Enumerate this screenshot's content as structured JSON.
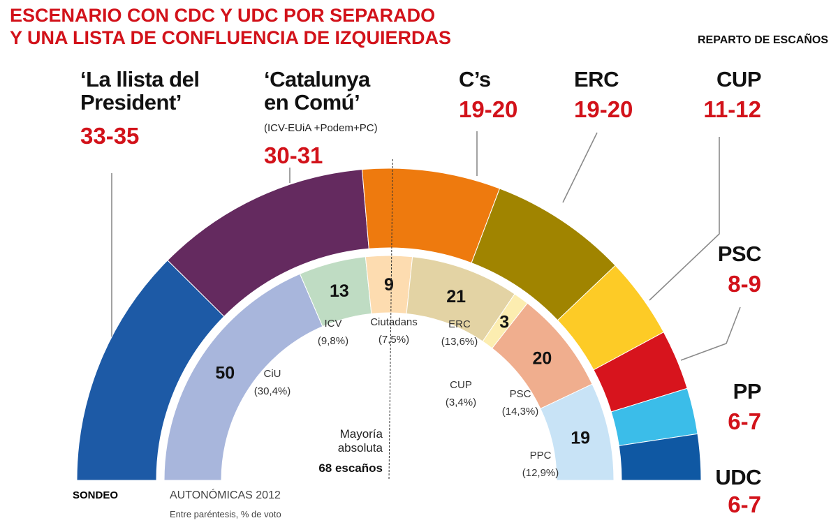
{
  "chart_data": {
    "type": "semicircle",
    "title": "ESCENARIO CON CDC Y UDC POR SEPARADO\nY UNA LISTA DE CONFLUENCIA DE IZQUIERDAS",
    "subtitle": "REPARTO DE ESCAÑOS",
    "sondeo": {
      "label": "SONDEO",
      "parties": [
        {
          "name": "‘La llista del\nPresident’",
          "low": 33,
          "high": 35,
          "value_label": "33-35",
          "color": "#1d5aa6"
        },
        {
          "name": "‘Catalunya\nen Comú’",
          "note": "(ICV-EUiA +Podem+PC)",
          "low": 30,
          "high": 31,
          "value_label": "30-31",
          "color": "#642a5f"
        },
        {
          "name": "C’s",
          "low": 19,
          "high": 20,
          "value_label": "19-20",
          "color": "#ee7a0e"
        },
        {
          "name": "ERC",
          "low": 19,
          "high": 20,
          "value_label": "19-20",
          "color": "#a08400"
        },
        {
          "name": "CUP",
          "low": 11,
          "high": 12,
          "value_label": "11-12",
          "color": "#fdcb26"
        },
        {
          "name": "PSC",
          "low": 8,
          "high": 9,
          "value_label": "8-9",
          "color": "#d7141d"
        },
        {
          "name": "PP",
          "low": 6,
          "high": 7,
          "value_label": "6-7",
          "color": "#3bbde9"
        },
        {
          "name": "UDC",
          "low": 6,
          "high": 7,
          "value_label": "6-7",
          "color": "#0f58a3"
        }
      ]
    },
    "autonomicas": {
      "label": "AUTONÓMICAS 2012",
      "note": "Entre paréntesis, % de voto",
      "parties": [
        {
          "name": "CiU",
          "seats": 50,
          "vote": 30.4,
          "vote_label": "(30,4%)",
          "color": "#a8b6dc"
        },
        {
          "name": "ICV",
          "seats": 13,
          "vote": 9.8,
          "vote_label": "(9,8%)",
          "color": "#bfdcc3"
        },
        {
          "name": "Ciutadans",
          "seats": 9,
          "vote": 7.5,
          "vote_label": "(7,5%)",
          "color": "#fddcb0"
        },
        {
          "name": "ERC",
          "seats": 21,
          "vote": 13.6,
          "vote_label": "(13,6%)",
          "color": "#e3d3a4"
        },
        {
          "name": "CUP",
          "seats": 3,
          "vote": 3.4,
          "vote_label": "(3,4%)",
          "color": "#fcedb0"
        },
        {
          "name": "PSC",
          "seats": 20,
          "vote": 14.3,
          "vote_label": "(14,3%)",
          "color": "#f0ae8e"
        },
        {
          "name": "PPC",
          "seats": 19,
          "vote": 12.9,
          "vote_label": "(12,9%)",
          "color": "#c8e3f6"
        }
      ]
    },
    "majority": {
      "label": "Mayoría\nabsoluta",
      "value": 68,
      "value_label": "68 escaños"
    }
  }
}
